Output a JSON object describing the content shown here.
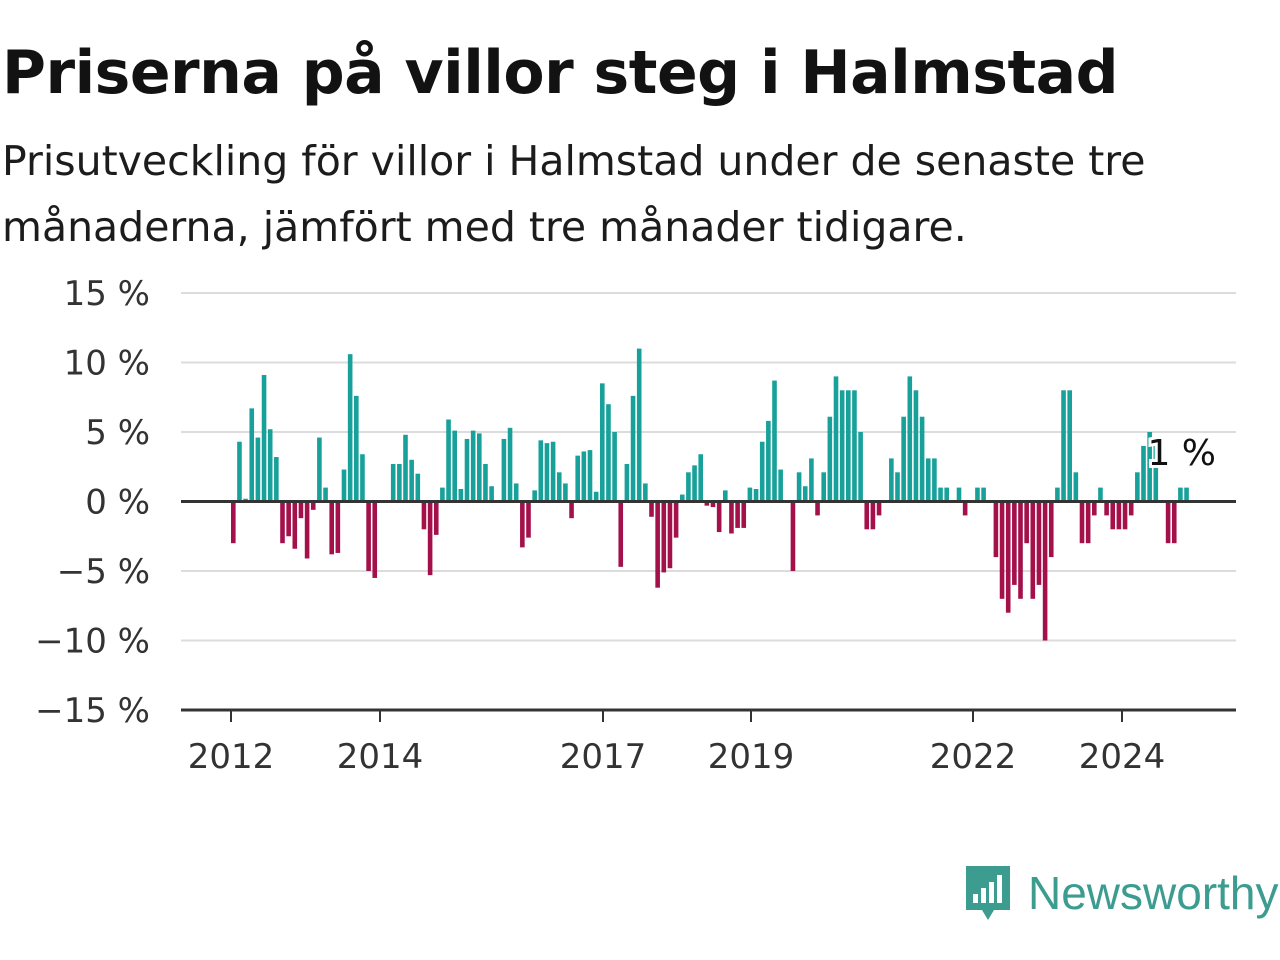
{
  "title": "Priserna på villor steg i Halmstad",
  "subtitle": "Prisutveckling för villor i Halmstad under de senaste tre månaderna, jämfört med tre månader tidigare.",
  "brand": {
    "name": "Newsworthy",
    "color": "#3b9c8f",
    "icon": "newsworthy-logo-icon"
  },
  "colors": {
    "positive": "#17a19a",
    "negative": "#a3104a",
    "grid": "#dcdcdc",
    "axis": "#333333"
  },
  "chart_data": {
    "type": "bar",
    "y_ticks": [
      "15 %",
      "10 %",
      "5 %",
      "0 %",
      "−5 %",
      "−10 %",
      "−15 %"
    ],
    "x_ticks": [
      "2012",
      "2014",
      "2017",
      "2019",
      "2022",
      "2024"
    ],
    "ylim": [
      -15,
      15
    ],
    "grid": true,
    "last_value_label": "1 %",
    "series": [
      {
        "values": [
          -3,
          4.3,
          0.2,
          6.7,
          4.6,
          9.1,
          5.2,
          3.2,
          -3,
          -2.5,
          -3.4,
          -1.2,
          -4.1,
          -0.6,
          4.6,
          1,
          -3.8,
          -3.7,
          2.3,
          10.6,
          7.6,
          3.4,
          -5,
          -5.5,
          0,
          0,
          2.7,
          2.7,
          4.8,
          3,
          2,
          -2,
          -5.3,
          -2.4,
          1,
          5.9,
          5.1,
          0.9,
          4.5,
          5.1,
          4.9,
          2.7,
          1.1,
          0,
          4.5,
          5.3,
          1.3,
          -3.3,
          -2.6,
          0.8,
          4.4,
          4.2,
          4.3,
          2.1,
          1.3,
          -1.2,
          3.3,
          3.6,
          3.7,
          0.7,
          8.5,
          7,
          5,
          -4.7,
          2.7,
          7.6,
          11,
          1.3,
          -1.1,
          -6.2,
          -5.1,
          -4.8,
          -2.6,
          0.5,
          2.1,
          2.6,
          3.4,
          -0.3,
          -0.4,
          -2.2,
          0.8,
          -2.3,
          -1.9,
          -1.9,
          1,
          0.9,
          4.3,
          5.8,
          8.7,
          2.3,
          0,
          -5,
          2.1,
          1.1,
          3.1,
          -1,
          2.1,
          6.1,
          9,
          8,
          8,
          8,
          5,
          -2,
          -2,
          -1,
          0,
          3.1,
          2.1,
          6.1,
          9,
          8,
          6.1,
          3.1,
          3.1,
          1,
          1,
          0,
          1,
          -1,
          0,
          1,
          1,
          0,
          -4,
          -7,
          -8,
          -6,
          -7,
          -3,
          -7,
          -6,
          -10,
          -4,
          1,
          8,
          8,
          2.1,
          -3,
          -3,
          -1,
          1,
          -1,
          -2,
          -2,
          -2,
          -1,
          2.1,
          4,
          5,
          4,
          0,
          -3,
          -3,
          1,
          1
        ]
      }
    ]
  }
}
